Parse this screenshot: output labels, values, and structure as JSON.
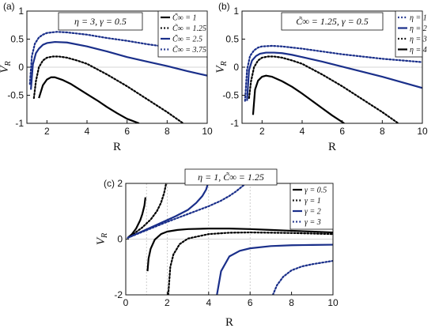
{
  "chart_data": [
    {
      "type": "line",
      "panel_label": "(a)",
      "annotation": "η = 3, γ = 0.5",
      "xlabel": "R",
      "ylabel": "V_R",
      "xlim": [
        1,
        10
      ],
      "ylim": [
        -1,
        1
      ],
      "xticks": [
        2,
        4,
        6,
        8,
        10
      ],
      "yticks": [
        -1,
        -0.5,
        0,
        0.5,
        1
      ],
      "ytick_labels": [
        "-1",
        "-0.5",
        "0",
        "0.5",
        "1"
      ],
      "legend_position": "top-right",
      "series": [
        {
          "name": "C̃∞ = 1",
          "color": "#000000",
          "dash": "solid",
          "x": [
            1.6,
            1.8,
            2.0,
            2.2,
            2.4,
            2.8,
            3.2,
            3.6,
            4.0,
            4.5,
            5.0,
            5.5,
            6.0,
            6.6
          ],
          "y": [
            -0.55,
            -0.32,
            -0.22,
            -0.18,
            -0.18,
            -0.23,
            -0.3,
            -0.39,
            -0.48,
            -0.59,
            -0.71,
            -0.82,
            -0.92,
            -1.0
          ]
        },
        {
          "name": "C̃∞ = 1.25",
          "color": "#000000",
          "dash": "dotted",
          "x": [
            1.35,
            1.45,
            1.6,
            1.8,
            2.0,
            2.3,
            2.6,
            3.0,
            3.5,
            4.0,
            5.0,
            6.0,
            7.0,
            8.0,
            8.8
          ],
          "y": [
            -0.55,
            -0.25,
            0.0,
            0.12,
            0.17,
            0.19,
            0.19,
            0.17,
            0.12,
            0.06,
            -0.13,
            -0.34,
            -0.57,
            -0.8,
            -1.0
          ]
        },
        {
          "name": "C̃∞ = 2.5",
          "color": "#1a2f8a",
          "dash": "solid",
          "x": [
            1.2,
            1.3,
            1.45,
            1.6,
            1.8,
            2.0,
            2.4,
            3.0,
            4.0,
            5.0,
            6.0,
            7.0,
            8.0,
            9.0,
            10.0
          ],
          "y": [
            -0.4,
            0.05,
            0.25,
            0.33,
            0.4,
            0.43,
            0.45,
            0.44,
            0.37,
            0.28,
            0.18,
            0.1,
            0.02,
            -0.07,
            -0.15
          ]
        },
        {
          "name": "C̃∞ = 3.75",
          "color": "#1a2f8a",
          "dash": "dotted",
          "x": [
            1.15,
            1.25,
            1.4,
            1.6,
            1.8,
            2.0,
            2.5,
            3.0,
            4.0,
            5.0,
            6.0,
            7.0,
            8.0,
            9.0,
            10.0
          ],
          "y": [
            -0.3,
            0.2,
            0.42,
            0.53,
            0.58,
            0.61,
            0.63,
            0.62,
            0.58,
            0.52,
            0.47,
            0.41,
            0.36,
            0.31,
            0.26
          ]
        }
      ]
    },
    {
      "type": "line",
      "panel_label": "(b)",
      "annotation": "C̃∞ = 1.25, γ = 0.5",
      "xlabel": "R",
      "ylabel": "V_R",
      "xlim": [
        1,
        10
      ],
      "ylim": [
        -1,
        1
      ],
      "xticks": [
        2,
        4,
        6,
        8,
        10
      ],
      "yticks": [
        -1,
        -0.5,
        0,
        0.5,
        1
      ],
      "ytick_labels": [
        "-1",
        "-0.5",
        "0",
        "0.5",
        "1"
      ],
      "legend_position": "top-right",
      "series": [
        {
          "name": "η = 1",
          "color": "#1a2f8a",
          "dash": "dotted",
          "x": [
            1.15,
            1.25,
            1.4,
            1.6,
            1.8,
            2.0,
            2.5,
            3.0,
            4.0,
            5.0,
            6.0,
            7.0,
            8.0,
            9.0,
            10.0
          ],
          "y": [
            -0.6,
            -0.05,
            0.2,
            0.3,
            0.35,
            0.37,
            0.38,
            0.37,
            0.33,
            0.28,
            0.23,
            0.19,
            0.15,
            0.12,
            0.09
          ]
        },
        {
          "name": "η = 2",
          "color": "#1a2f8a",
          "dash": "solid",
          "x": [
            1.25,
            1.35,
            1.5,
            1.7,
            1.9,
            2.2,
            2.6,
            3.0,
            3.5,
            4.0,
            5.0,
            6.0,
            7.0,
            8.0,
            9.0,
            10.0
          ],
          "y": [
            -0.6,
            -0.05,
            0.12,
            0.2,
            0.24,
            0.26,
            0.26,
            0.25,
            0.22,
            0.18,
            0.1,
            0.01,
            -0.08,
            -0.17,
            -0.27,
            -0.37
          ]
        },
        {
          "name": "η = 3",
          "color": "#000000",
          "dash": "dotted",
          "x": [
            1.35,
            1.45,
            1.6,
            1.8,
            2.0,
            2.3,
            2.6,
            3.0,
            3.5,
            4.0,
            5.0,
            6.0,
            7.0,
            8.0,
            8.8
          ],
          "y": [
            -0.55,
            -0.25,
            0.0,
            0.12,
            0.17,
            0.19,
            0.19,
            0.17,
            0.12,
            0.06,
            -0.13,
            -0.34,
            -0.57,
            -0.8,
            -1.0
          ]
        },
        {
          "name": "η = 4",
          "color": "#000000",
          "dash": "solid",
          "x": [
            1.55,
            1.65,
            1.8,
            2.0,
            2.2,
            2.5,
            3.0,
            3.5,
            4.0,
            4.5,
            5.0,
            5.5,
            6.1
          ],
          "y": [
            -0.85,
            -0.4,
            -0.24,
            -0.17,
            -0.15,
            -0.17,
            -0.25,
            -0.35,
            -0.47,
            -0.6,
            -0.73,
            -0.86,
            -1.0
          ]
        }
      ]
    },
    {
      "type": "line",
      "panel_label": "(c)",
      "annotation": "η = 1, C̃∞ = 1.25",
      "xlabel": "R",
      "ylabel": "V_R",
      "xlim": [
        0,
        10
      ],
      "ylim": [
        -2,
        2
      ],
      "xticks": [
        0,
        2,
        4,
        6,
        8,
        10
      ],
      "yticks": [
        -2,
        0,
        2
      ],
      "ytick_labels": [
        "-2",
        "0",
        "2"
      ],
      "vertical_asymptotes": [
        1,
        2,
        4,
        6
      ],
      "legend_position": "top-right",
      "series": [
        {
          "name": "γ = 0.5",
          "color": "#000000",
          "dash": "solid",
          "segments": [
            {
              "x": [
                0.1,
                0.3,
                0.5,
                0.7,
                0.8,
                0.9,
                0.95
              ],
              "y": [
                0.05,
                0.18,
                0.38,
                0.68,
                0.9,
                1.2,
                1.5
              ]
            },
            {
              "x": [
                1.05,
                1.1,
                1.2,
                1.4,
                1.7,
                2.0,
                2.5,
                3.0,
                4.0,
                5.0,
                6.0,
                7.0,
                8.0,
                9.0,
                10.0
              ],
              "y": [
                -1.15,
                -0.7,
                -0.35,
                -0.02,
                0.18,
                0.27,
                0.33,
                0.36,
                0.38,
                0.38,
                0.36,
                0.33,
                0.3,
                0.27,
                0.24
              ]
            }
          ]
        },
        {
          "name": "γ = 1",
          "color": "#000000",
          "dash": "dotted",
          "segments": [
            {
              "x": [
                0.1,
                0.4,
                0.8,
                1.2,
                1.5,
                1.7,
                1.85,
                1.95
              ],
              "y": [
                0.05,
                0.2,
                0.42,
                0.7,
                1.0,
                1.3,
                1.65,
                2.0
              ]
            },
            {
              "x": [
                2.05,
                2.15,
                2.3,
                2.6,
                3.0,
                4.0,
                5.0,
                6.0,
                7.0,
                8.0,
                9.0,
                10.0
              ],
              "y": [
                -2.0,
                -1.0,
                -0.55,
                -0.18,
                0.02,
                0.18,
                0.23,
                0.24,
                0.23,
                0.22,
                0.2,
                0.18
              ]
            }
          ]
        },
        {
          "name": "γ = 2",
          "color": "#1a2f8a",
          "dash": "solid",
          "segments": [
            {
              "x": [
                0.1,
                0.8,
                1.6,
                2.4,
                3.0,
                3.4,
                3.7,
                3.88,
                3.97
              ],
              "y": [
                0.05,
                0.28,
                0.55,
                0.82,
                1.05,
                1.3,
                1.55,
                1.78,
                2.0
              ]
            },
            {
              "x": [
                4.4,
                4.6,
                5.0,
                5.5,
                6.0,
                7.0,
                8.0,
                9.0,
                10.0
              ],
              "y": [
                -2.0,
                -1.15,
                -0.62,
                -0.42,
                -0.33,
                -0.25,
                -0.22,
                -0.21,
                -0.2
              ]
            }
          ]
        },
        {
          "name": "γ = 3",
          "color": "#1a2f8a",
          "dash": "dotted",
          "segments": [
            {
              "x": [
                0.1,
                1.0,
                2.0,
                3.0,
                4.0,
                4.6,
                5.0,
                5.3,
                5.6,
                5.8
              ],
              "y": [
                0.05,
                0.32,
                0.62,
                0.9,
                1.18,
                1.38,
                1.55,
                1.7,
                1.88,
                2.0
              ]
            },
            {
              "x": [
                7.1,
                7.3,
                7.6,
                8.0,
                8.5,
                9.0,
                10.0
              ],
              "y": [
                -2.0,
                -1.65,
                -1.35,
                -1.12,
                -0.98,
                -0.9,
                -0.78
              ]
            }
          ]
        }
      ]
    }
  ]
}
